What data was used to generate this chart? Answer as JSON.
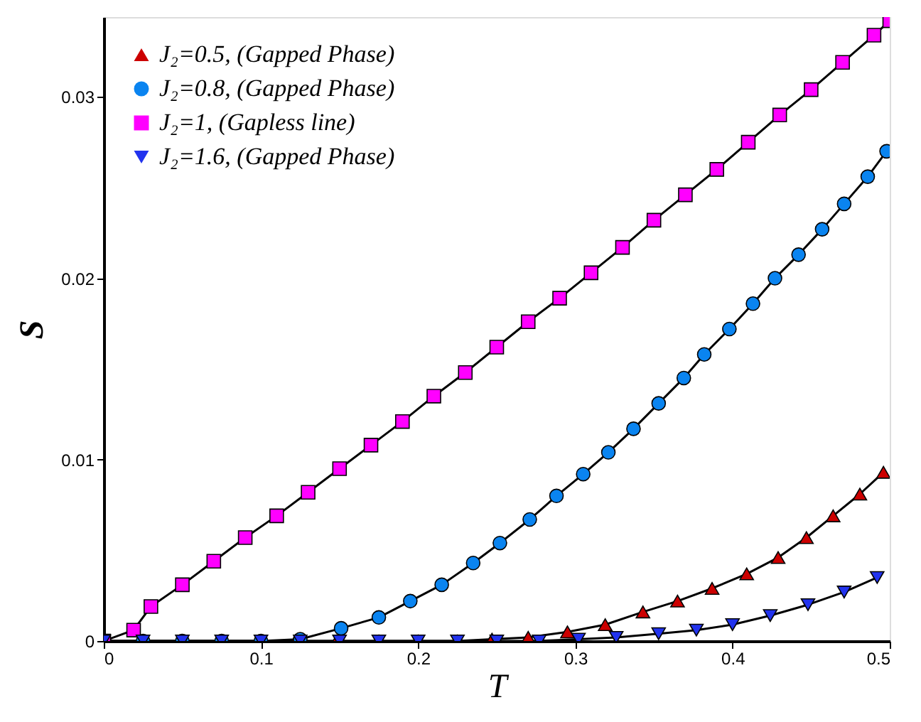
{
  "chart_data": {
    "type": "line",
    "xlabel": "T",
    "ylabel": "S",
    "xlim": [
      0,
      0.5
    ],
    "xticks": [
      0,
      0.1,
      0.2,
      0.3,
      0.4,
      0.5
    ],
    "ylim": [
      0,
      0.0344
    ],
    "yticks": [
      0,
      0.01,
      0.02,
      0.03
    ],
    "grid": false,
    "legend": "top left",
    "line_style": "solid",
    "series": [
      {
        "name": "J₂=0.5, (Gapped Phase)",
        "color": "#cc0000",
        "marker": "triangle",
        "x": [
          0,
          0.025,
          0.05,
          0.075,
          0.099,
          0.122,
          0.148,
          0.175,
          0.2,
          0.225,
          0.247,
          0.27,
          0.295,
          0.319,
          0.343,
          0.365,
          0.387,
          0.409,
          0.429,
          0.447,
          0.464,
          0.481,
          0.496
        ],
        "values": [
          0,
          0,
          0,
          0,
          0,
          0,
          0,
          0,
          0,
          0,
          0.0001,
          0.0002,
          0.0005,
          0.0009,
          0.0016,
          0.0022,
          0.0029,
          0.0037,
          0.0046,
          0.0057,
          0.0069,
          0.0081,
          0.0093
        ]
      },
      {
        "name": "J₂=0.8, (Gapped Phase)",
        "color": "#0a84f0",
        "marker": "circle",
        "x": [
          0,
          0.025,
          0.05,
          0.075,
          0.1,
          0.125,
          0.151,
          0.175,
          0.195,
          0.215,
          0.235,
          0.252,
          0.271,
          0.288,
          0.305,
          0.321,
          0.337,
          0.353,
          0.369,
          0.382,
          0.398,
          0.413,
          0.427,
          0.442,
          0.457,
          0.471,
          0.486,
          0.498
        ],
        "values": [
          0,
          0,
          0,
          0,
          0,
          0.0001,
          0.0007,
          0.0013,
          0.0022,
          0.0031,
          0.0043,
          0.0054,
          0.0067,
          0.008,
          0.0092,
          0.0104,
          0.0117,
          0.0131,
          0.0145,
          0.0158,
          0.0172,
          0.0186,
          0.02,
          0.0213,
          0.0227,
          0.0241,
          0.0256,
          0.027
        ]
      },
      {
        "name": "J₂=1, (Gapless line)",
        "color": "#ff00ff",
        "marker": "square",
        "x": [
          0,
          0.019,
          0.03,
          0.05,
          0.07,
          0.09,
          0.11,
          0.13,
          0.15,
          0.17,
          0.19,
          0.21,
          0.23,
          0.25,
          0.27,
          0.29,
          0.31,
          0.33,
          0.35,
          0.37,
          0.39,
          0.41,
          0.43,
          0.45,
          0.47,
          0.49,
          0.5
        ],
        "values": [
          0,
          0.0006,
          0.0019,
          0.0031,
          0.0044,
          0.0057,
          0.0069,
          0.0082,
          0.0095,
          0.0108,
          0.0121,
          0.0135,
          0.0148,
          0.0162,
          0.0176,
          0.0189,
          0.0203,
          0.0217,
          0.0232,
          0.0246,
          0.026,
          0.0275,
          0.029,
          0.0304,
          0.0319,
          0.0334,
          0.0342
        ]
      },
      {
        "name": "J₂=1.6, (Gapped Phase)",
        "color": "#2233ee",
        "marker": "triangle-down",
        "x": [
          0,
          0.025,
          0.05,
          0.075,
          0.1,
          0.125,
          0.15,
          0.175,
          0.2,
          0.225,
          0.25,
          0.277,
          0.302,
          0.326,
          0.353,
          0.377,
          0.4,
          0.424,
          0.448,
          0.471,
          0.492
        ],
        "values": [
          0,
          0,
          0,
          0,
          0,
          0,
          0,
          0,
          0,
          0,
          0,
          0,
          0.0001,
          0.0002,
          0.0004,
          0.0006,
          0.0009,
          0.0014,
          0.002,
          0.0027,
          0.0035
        ]
      }
    ]
  }
}
